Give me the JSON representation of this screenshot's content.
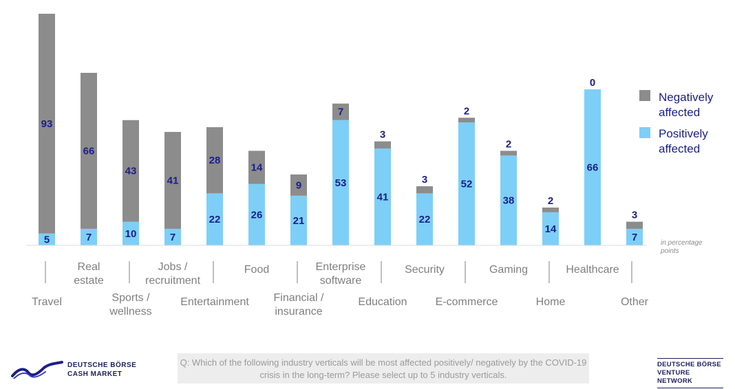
{
  "chart_data": {
    "type": "bar",
    "stacked": true,
    "categories": [
      "Travel",
      "Real estate",
      "Sports / wellness",
      "Jobs / recruitment",
      "Entertainment",
      "Food",
      "Financial / insurance",
      "Enterprise software",
      "Education",
      "Security",
      "E-commerce",
      "Gaming",
      "Home",
      "Healthcare",
      "Other"
    ],
    "category_lines": [
      [
        "Travel"
      ],
      [
        "Real",
        "estate"
      ],
      [
        "Sports /",
        "wellness"
      ],
      [
        "Jobs /",
        "recruitment"
      ],
      [
        "Entertainment"
      ],
      [
        "Food"
      ],
      [
        "Financial /",
        "insurance"
      ],
      [
        "Enterprise",
        "software"
      ],
      [
        "Education"
      ],
      [
        "Security"
      ],
      [
        "E-commerce"
      ],
      [
        "Gaming"
      ],
      [
        "Home"
      ],
      [
        "Healthcare"
      ],
      [
        "Other"
      ]
    ],
    "series": [
      {
        "name": "Positively affected",
        "color": "#7dcff7",
        "values": [
          5,
          7,
          10,
          7,
          22,
          26,
          21,
          53,
          41,
          22,
          52,
          38,
          14,
          66,
          7
        ]
      },
      {
        "name": "Negatively affected",
        "color": "#8c8c8c",
        "values": [
          93,
          66,
          43,
          41,
          28,
          14,
          9,
          7,
          3,
          3,
          2,
          2,
          2,
          0,
          3
        ]
      }
    ],
    "legend_position": "top-right",
    "grid": false,
    "ylim": [
      0,
      98
    ],
    "unit_note": "in percentage points"
  },
  "footer": {
    "left_logo_lines": [
      "DEUTSCHE BÖRSE",
      "CASH MARKET"
    ],
    "question": "Q: Which of the following industry verticals will be most affected positively/ negatively by the COVID-19 crisis in the long-term? Please select up to 5 industry verticals.",
    "right_logo_lines": [
      "DEUTSCHE BÖRSE",
      "VENTURE NETWORK"
    ]
  },
  "legend": {
    "negative_lines": [
      "Negatively",
      "affected"
    ],
    "positive_lines": [
      "Positively",
      "affected"
    ]
  }
}
